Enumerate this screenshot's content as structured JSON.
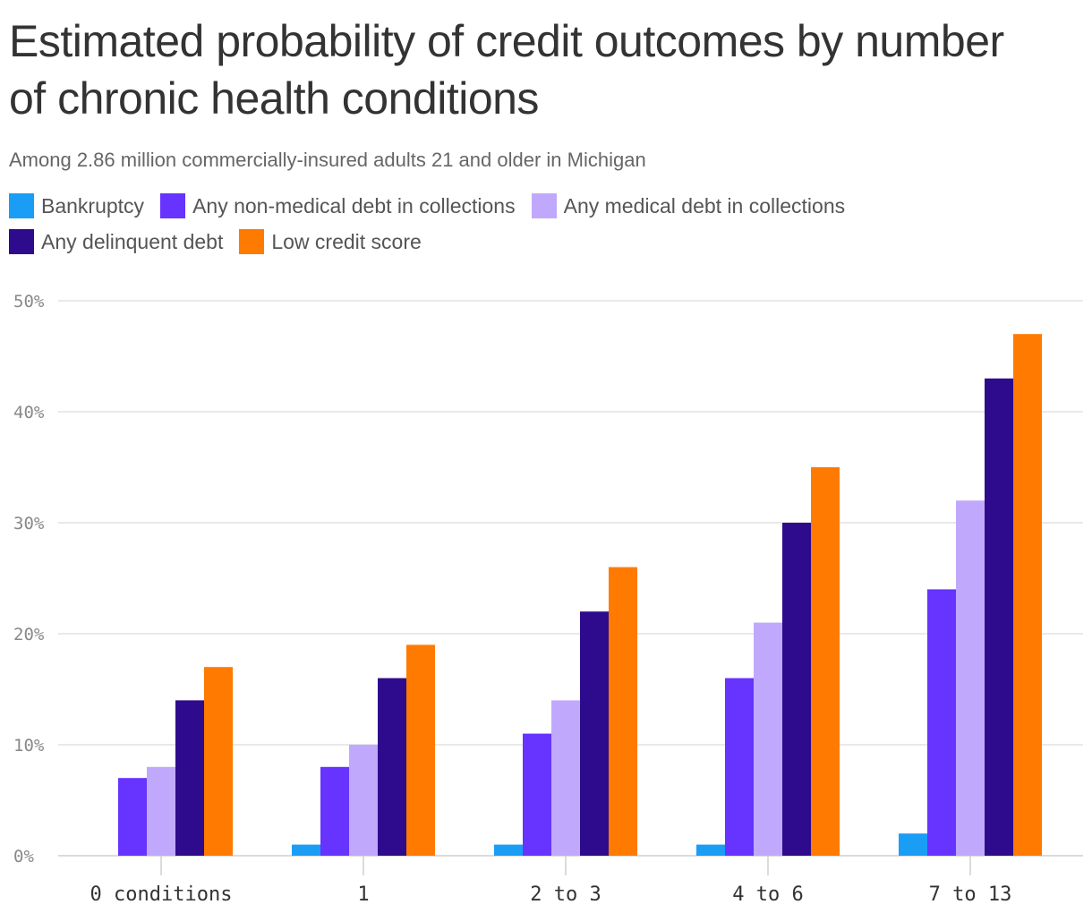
{
  "title": "Estimated probability of credit outcomes by number of chronic health conditions",
  "subtitle": "Among 2.86 million commercially-insured adults 21 and older in Michigan",
  "chart_data": {
    "type": "bar",
    "title": "Estimated probability of credit outcomes by number of chronic health conditions",
    "subtitle": "Among 2.86 million commercially-insured adults 21 and older in Michigan",
    "xlabel": "",
    "ylabel": "",
    "categories": [
      "0 conditions",
      "1",
      "2 to 3",
      "4 to 6",
      "7 to 13"
    ],
    "ylim": [
      0,
      50
    ],
    "yticks": [
      0,
      10,
      20,
      30,
      40,
      50
    ],
    "ytick_labels": [
      "0%",
      "10%",
      "20%",
      "30%",
      "40%",
      "50%"
    ],
    "grid": true,
    "legend_position": "top-left",
    "series": [
      {
        "name": "Bankruptcy",
        "color": "#1a9df5",
        "values": [
          0,
          1,
          1,
          1,
          2
        ]
      },
      {
        "name": "Any non-medical debt in collections",
        "color": "#6633ff",
        "values": [
          7,
          8,
          11,
          16,
          24
        ]
      },
      {
        "name": "Any medical debt in collections",
        "color": "#c0a9fd",
        "values": [
          8,
          10,
          14,
          21,
          32
        ]
      },
      {
        "name": "Any delinquent debt",
        "color": "#2e0b8c",
        "values": [
          14,
          16,
          22,
          30,
          43
        ]
      },
      {
        "name": "Low credit score",
        "color": "#ff7a00",
        "values": [
          17,
          19,
          26,
          35,
          47
        ]
      }
    ]
  }
}
